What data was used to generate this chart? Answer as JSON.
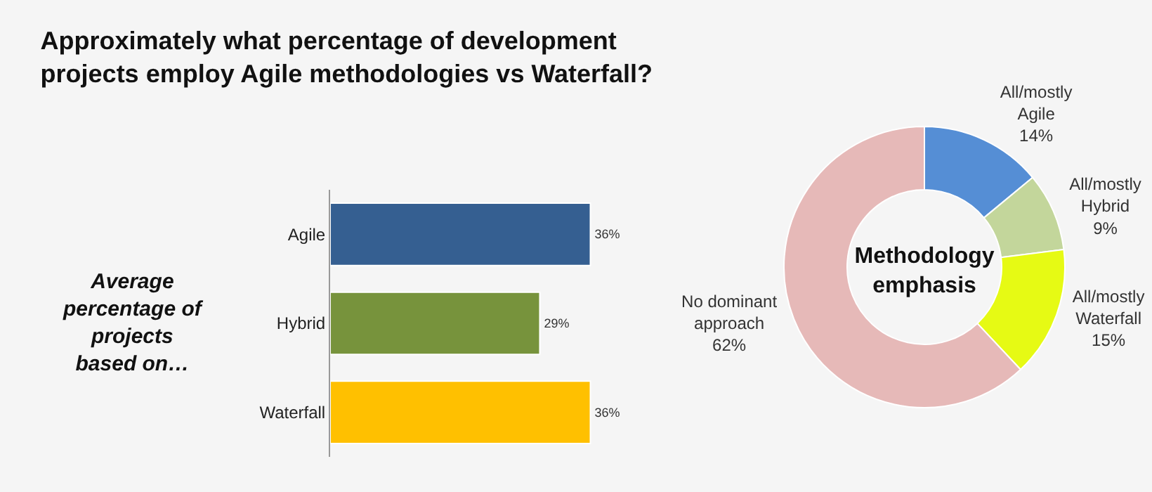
{
  "chart_data": [
    {
      "type": "bar",
      "orientation": "horizontal",
      "title": "Approximately what percentage of development\nprojects employ Agile methodologies vs Waterfall?",
      "annotations": [
        "Average\npercentage of\nprojects\nbased on…"
      ],
      "categories": [
        "Agile",
        "Hybrid",
        "Waterfall"
      ],
      "values": [
        36,
        29,
        36
      ],
      "colors": [
        "#355f91",
        "#77933c",
        "#ffc000"
      ],
      "value_labels": [
        "36%",
        "29%",
        "36%"
      ]
    },
    {
      "type": "donut",
      "title": "Methodology\nemphasis",
      "categories": [
        "All/mostly\nAgile",
        "All/mostly\nHybrid",
        "All/mostly\nWaterfall",
        "No dominant\napproach"
      ],
      "values": [
        14,
        9,
        15,
        62
      ],
      "colors": [
        "#558ed5",
        "#c3d69b",
        "#e6fa14",
        "#e6b9b8"
      ],
      "value_labels": [
        "14%",
        "9%",
        "15%",
        "62%"
      ]
    }
  ]
}
